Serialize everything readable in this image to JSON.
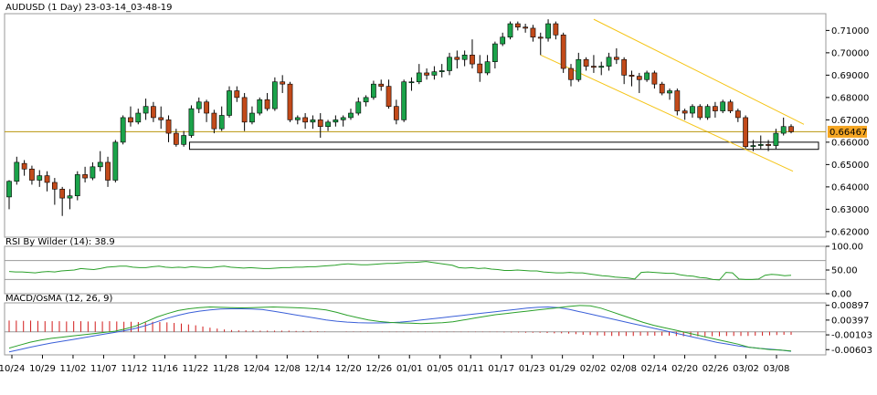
{
  "header": {
    "title": "AUDUSD (1 Day) 23-03-14_03-48-19"
  },
  "colors": {
    "bull_fill": "#1ba34a",
    "bear_fill": "#c24a1a",
    "wick": "#000000",
    "channel": "#f5c518",
    "price_line": "#b8960c",
    "price_tag_bg": "#f5a623",
    "rsi_line": "#2aa02a",
    "rsi_levels": "#999999",
    "macd_line": "#2aa02a",
    "signal_line": "#3a5fd8",
    "osma_bar": "#d21a1a"
  },
  "chart_data": [
    {
      "type": "candlestick",
      "title": "AUDUSD (1 Day) 23-03-14_03-48-19",
      "ylim": [
        0.6175,
        0.7175
      ],
      "yticks": [
        "0.71000",
        "0.70000",
        "0.69000",
        "0.68000",
        "0.67000",
        "0.66000",
        "0.65000",
        "0.64000",
        "0.63000",
        "0.62000"
      ],
      "xlabels": [
        "10/24",
        "10/29",
        "11/02",
        "11/07",
        "11/12",
        "11/16",
        "11/22",
        "11/28",
        "12/04",
        "12/08",
        "12/14",
        "12/20",
        "12/26",
        "01/01",
        "01/05",
        "01/11",
        "01/17",
        "01/23",
        "01/29",
        "02/02",
        "02/08",
        "02/14",
        "02/20",
        "02/26",
        "03/02",
        "03/08"
      ],
      "current_price": "0.66467",
      "candles": [
        [
          0.6355,
          0.6425,
          0.63,
          0.643
        ],
        [
          0.6425,
          0.651,
          0.641,
          0.6535
        ],
        [
          0.6505,
          0.648,
          0.645,
          0.652
        ],
        [
          0.648,
          0.643,
          0.641,
          0.6495
        ],
        [
          0.643,
          0.645,
          0.64,
          0.6475
        ],
        [
          0.645,
          0.642,
          0.638,
          0.647
        ],
        [
          0.642,
          0.639,
          0.632,
          0.644
        ],
        [
          0.639,
          0.635,
          0.627,
          0.64
        ],
        [
          0.635,
          0.636,
          0.63,
          0.639
        ],
        [
          0.636,
          0.6455,
          0.634,
          0.647
        ],
        [
          0.6455,
          0.644,
          0.642,
          0.649
        ],
        [
          0.644,
          0.649,
          0.643,
          0.651
        ],
        [
          0.649,
          0.651,
          0.647,
          0.656
        ],
        [
          0.651,
          0.643,
          0.64,
          0.6535
        ],
        [
          0.643,
          0.66,
          0.642,
          0.661
        ],
        [
          0.66,
          0.671,
          0.659,
          0.672
        ],
        [
          0.671,
          0.669,
          0.667,
          0.676
        ],
        [
          0.669,
          0.673,
          0.668,
          0.675
        ],
        [
          0.673,
          0.676,
          0.67,
          0.6795
        ],
        [
          0.676,
          0.671,
          0.669,
          0.678
        ],
        [
          0.671,
          0.67,
          0.666,
          0.676
        ],
        [
          0.67,
          0.664,
          0.66,
          0.672
        ],
        [
          0.664,
          0.659,
          0.658,
          0.666
        ],
        [
          0.659,
          0.663,
          0.658,
          0.665
        ],
        [
          0.663,
          0.675,
          0.662,
          0.6765
        ],
        [
          0.675,
          0.678,
          0.673,
          0.68
        ],
        [
          0.678,
          0.673,
          0.669,
          0.679
        ],
        [
          0.673,
          0.666,
          0.664,
          0.6745
        ],
        [
          0.666,
          0.672,
          0.665,
          0.676
        ],
        [
          0.672,
          0.683,
          0.671,
          0.685
        ],
        [
          0.683,
          0.68,
          0.678,
          0.685
        ],
        [
          0.68,
          0.669,
          0.665,
          0.682
        ],
        [
          0.669,
          0.673,
          0.668,
          0.676
        ],
        [
          0.673,
          0.679,
          0.672,
          0.68
        ],
        [
          0.679,
          0.675,
          0.674,
          0.682
        ],
        [
          0.675,
          0.687,
          0.674,
          0.689
        ],
        [
          0.687,
          0.686,
          0.682,
          0.69
        ],
        [
          0.686,
          0.67,
          0.669,
          0.687
        ],
        [
          0.67,
          0.671,
          0.668,
          0.672
        ],
        [
          0.671,
          0.669,
          0.666,
          0.673
        ],
        [
          0.669,
          0.67,
          0.666,
          0.672
        ],
        [
          0.67,
          0.667,
          0.662,
          0.673
        ],
        [
          0.667,
          0.669,
          0.665,
          0.67
        ],
        [
          0.669,
          0.67,
          0.667,
          0.672
        ],
        [
          0.67,
          0.671,
          0.667,
          0.672
        ],
        [
          0.671,
          0.673,
          0.67,
          0.675
        ],
        [
          0.673,
          0.678,
          0.672,
          0.68
        ],
        [
          0.678,
          0.68,
          0.676,
          0.681
        ],
        [
          0.68,
          0.686,
          0.679,
          0.6875
        ],
        [
          0.686,
          0.685,
          0.683,
          0.688
        ],
        [
          0.685,
          0.676,
          0.675,
          0.688
        ],
        [
          0.676,
          0.67,
          0.668,
          0.679
        ],
        [
          0.67,
          0.687,
          0.669,
          0.688
        ],
        [
          0.687,
          0.687,
          0.683,
          0.689
        ],
        [
          0.687,
          0.691,
          0.686,
          0.695
        ],
        [
          0.691,
          0.69,
          0.688,
          0.693
        ],
        [
          0.69,
          0.6915,
          0.688,
          0.694
        ],
        [
          0.6915,
          0.692,
          0.689,
          0.695
        ],
        [
          0.692,
          0.698,
          0.69,
          0.7
        ],
        [
          0.698,
          0.697,
          0.693,
          0.701
        ],
        [
          0.697,
          0.699,
          0.694,
          0.701
        ],
        [
          0.699,
          0.695,
          0.693,
          0.706
        ],
        [
          0.695,
          0.691,
          0.687,
          0.699
        ],
        [
          0.691,
          0.696,
          0.69,
          0.699
        ],
        [
          0.696,
          0.704,
          0.693,
          0.705
        ],
        [
          0.704,
          0.707,
          0.703,
          0.709
        ],
        [
          0.707,
          0.713,
          0.706,
          0.714
        ],
        [
          0.713,
          0.7115,
          0.71,
          0.714
        ],
        [
          0.7115,
          0.711,
          0.709,
          0.713
        ],
        [
          0.711,
          0.707,
          0.705,
          0.7125
        ],
        [
          0.707,
          0.7065,
          0.699,
          0.709
        ],
        [
          0.7065,
          0.713,
          0.705,
          0.715
        ],
        [
          0.713,
          0.708,
          0.706,
          0.714
        ],
        [
          0.708,
          0.693,
          0.691,
          0.709
        ],
        [
          0.693,
          0.688,
          0.685,
          0.695
        ],
        [
          0.688,
          0.697,
          0.687,
          0.7
        ],
        [
          0.697,
          0.694,
          0.692,
          0.698
        ],
        [
          0.694,
          0.6935,
          0.691,
          0.699
        ],
        [
          0.6935,
          0.694,
          0.69,
          0.696
        ],
        [
          0.694,
          0.698,
          0.692,
          0.7
        ],
        [
          0.698,
          0.697,
          0.695,
          0.702
        ],
        [
          0.697,
          0.69,
          0.686,
          0.698
        ],
        [
          0.69,
          0.6895,
          0.685,
          0.692
        ],
        [
          0.6895,
          0.688,
          0.682,
          0.691
        ],
        [
          0.688,
          0.691,
          0.687,
          0.692
        ],
        [
          0.691,
          0.686,
          0.684,
          0.692
        ],
        [
          0.686,
          0.682,
          0.681,
          0.687
        ],
        [
          0.682,
          0.683,
          0.679,
          0.684
        ],
        [
          0.683,
          0.674,
          0.672,
          0.684
        ],
        [
          0.674,
          0.673,
          0.67,
          0.675
        ],
        [
          0.673,
          0.676,
          0.671,
          0.677
        ],
        [
          0.676,
          0.671,
          0.67,
          0.677
        ],
        [
          0.671,
          0.676,
          0.67,
          0.677
        ],
        [
          0.676,
          0.674,
          0.671,
          0.678
        ],
        [
          0.674,
          0.678,
          0.673,
          0.679
        ],
        [
          0.678,
          0.674,
          0.673,
          0.679
        ],
        [
          0.674,
          0.671,
          0.669,
          0.675
        ],
        [
          0.671,
          0.658,
          0.657,
          0.672
        ],
        [
          0.658,
          0.6585,
          0.656,
          0.661
        ],
        [
          0.6585,
          0.659,
          0.657,
          0.663
        ],
        [
          0.659,
          0.6585,
          0.656,
          0.661
        ],
        [
          0.6585,
          0.664,
          0.657,
          0.666
        ],
        [
          0.664,
          0.667,
          0.663,
          0.671
        ],
        [
          0.667,
          0.6647,
          0.664,
          0.668
        ]
      ]
    },
    {
      "type": "line",
      "title": "RSI By Wilder (14): 38.9",
      "ylim": [
        0,
        100
      ],
      "yticks": [
        "100.00",
        "50.00",
        "0.00"
      ],
      "levels": [
        70,
        30
      ],
      "values": [
        47,
        46,
        46,
        45,
        44,
        46,
        47,
        46,
        48,
        49,
        50,
        53,
        52,
        51,
        53,
        56,
        57,
        58,
        58,
        56,
        55,
        55,
        57,
        58,
        56,
        55,
        56,
        55,
        57,
        56,
        55,
        55,
        57,
        58,
        56,
        55,
        54,
        55,
        54,
        53,
        53,
        54,
        55,
        55,
        56,
        56,
        57,
        57,
        58,
        59,
        60,
        62,
        63,
        62,
        61,
        61,
        62,
        63,
        64,
        64,
        65,
        66,
        66,
        67,
        68,
        66,
        64,
        62,
        60,
        55,
        54,
        55,
        53,
        54,
        52,
        51,
        49,
        49,
        50,
        49,
        48,
        48,
        46,
        45,
        44,
        44,
        45,
        44,
        44,
        42,
        40,
        38,
        37,
        35,
        34,
        33,
        31,
        45,
        46,
        45,
        44,
        43,
        43,
        40,
        38,
        37,
        34,
        33,
        30,
        29,
        45,
        44,
        31,
        30,
        30,
        31,
        39,
        41,
        40,
        38,
        39
      ]
    },
    {
      "type": "line",
      "title": "MACD/OsMA (12, 26, 9)",
      "ylim": [
        -0.0078,
        0.0098
      ],
      "yticks": [
        "0.00897",
        "0.00397",
        "-0.00103",
        "-0.00603"
      ],
      "macd": [
        -0.0055,
        -0.0045,
        -0.0035,
        -0.0028,
        -0.0022,
        -0.0018,
        -0.0014,
        -0.001,
        -0.0006,
        -0.0002,
        0.0002,
        0.001,
        0.002,
        0.0035,
        0.005,
        0.0062,
        0.0072,
        0.0078,
        0.0082,
        0.0084,
        0.0083,
        0.0082,
        0.0081,
        0.0082,
        0.0083,
        0.0084,
        0.0083,
        0.0082,
        0.008,
        0.0078,
        0.0074,
        0.0066,
        0.0056,
        0.0048,
        0.004,
        0.0035,
        0.0032,
        0.003,
        0.0029,
        0.0028,
        0.0029,
        0.0031,
        0.0034,
        0.004,
        0.0046,
        0.0052,
        0.0058,
        0.0062,
        0.0066,
        0.007,
        0.0074,
        0.0078,
        0.0082,
        0.0086,
        0.0089,
        0.0088,
        0.008,
        0.0068,
        0.0056,
        0.0044,
        0.0032,
        0.0022,
        0.0014,
        0.0006,
        -0.0002,
        -0.001,
        -0.0018,
        -0.0026,
        -0.0034,
        -0.0042,
        -0.0052,
        -0.0056,
        -0.006,
        -0.0062,
        -0.0065
      ],
      "signal": [
        -0.0068,
        -0.006,
        -0.0052,
        -0.0045,
        -0.0038,
        -0.0032,
        -0.0026,
        -0.002,
        -0.0014,
        -0.0008,
        -0.0002,
        0.0004,
        0.0012,
        0.0022,
        0.0034,
        0.0046,
        0.0056,
        0.0064,
        0.007,
        0.0074,
        0.0077,
        0.0078,
        0.0078,
        0.0077,
        0.0075,
        0.007,
        0.0064,
        0.0058,
        0.0052,
        0.0046,
        0.004,
        0.0036,
        0.0033,
        0.0031,
        0.003,
        0.003,
        0.0031,
        0.0033,
        0.0036,
        0.004,
        0.0044,
        0.0048,
        0.0052,
        0.0056,
        0.006,
        0.0064,
        0.0068,
        0.0072,
        0.0076,
        0.008,
        0.0083,
        0.0084,
        0.0082,
        0.0076,
        0.0068,
        0.006,
        0.0052,
        0.0044,
        0.0036,
        0.0028,
        0.002,
        0.0012,
        0.0004,
        -0.0004,
        -0.0012,
        -0.002,
        -0.0028,
        -0.0036,
        -0.0042,
        -0.0048,
        -0.0052,
        -0.0056,
        -0.0059,
        -0.0062,
        -0.0066
      ],
      "osma": [
        0.0038,
        0.0038,
        0.0037,
        0.0038,
        0.0037,
        0.0036,
        0.0036,
        0.0036,
        0.0035,
        0.0036,
        0.0036,
        0.0035,
        0.0035,
        0.0035,
        0.0036,
        0.0035,
        0.0034,
        0.0034,
        0.0033,
        0.0032,
        0.0034,
        0.0033,
        0.0032,
        0.003,
        0.0028,
        0.0025,
        0.0022,
        0.0018,
        0.0014,
        0.0011,
        0.0008,
        0.0006,
        0.0005,
        0.0005,
        0.0005,
        0.0004,
        0.0004,
        0.0004,
        0.0004,
        0.0004,
        0.0003,
        0.0003,
        0.0003,
        0.0002,
        0.0001,
        0.0,
        0.0,
        0.0001,
        0.0001,
        0.0001,
        0.0001,
        0.0,
        -0.0001,
        -0.0001,
        -0.0001,
        -0.0001,
        -0.0001,
        -0.0001,
        -0.0001,
        -0.0001,
        -0.0001,
        -0.0001,
        -0.0001,
        -0.0001,
        -0.0001,
        -0.0001,
        -0.0001,
        -0.0001,
        -0.0001,
        -0.0002,
        -0.0002,
        -0.0002,
        -0.0003,
        -0.0003,
        -0.0003,
        -0.0004,
        -0.0005,
        -0.0005,
        -0.0006,
        -0.0008,
        -0.001,
        -0.0011,
        -0.0012,
        -0.0013,
        -0.0014,
        -0.0014,
        -0.0014,
        -0.0014,
        -0.0013,
        -0.0013,
        -0.0013,
        -0.0013,
        -0.0013,
        -0.0014,
        -0.0015,
        -0.0015,
        -0.0015,
        -0.0015,
        -0.0015,
        -0.0015,
        -0.0014,
        -0.0014,
        -0.0014,
        -0.0014,
        -0.0013,
        -0.0013,
        -0.0012,
        -0.0011,
        -0.001,
        -0.001
      ]
    }
  ]
}
